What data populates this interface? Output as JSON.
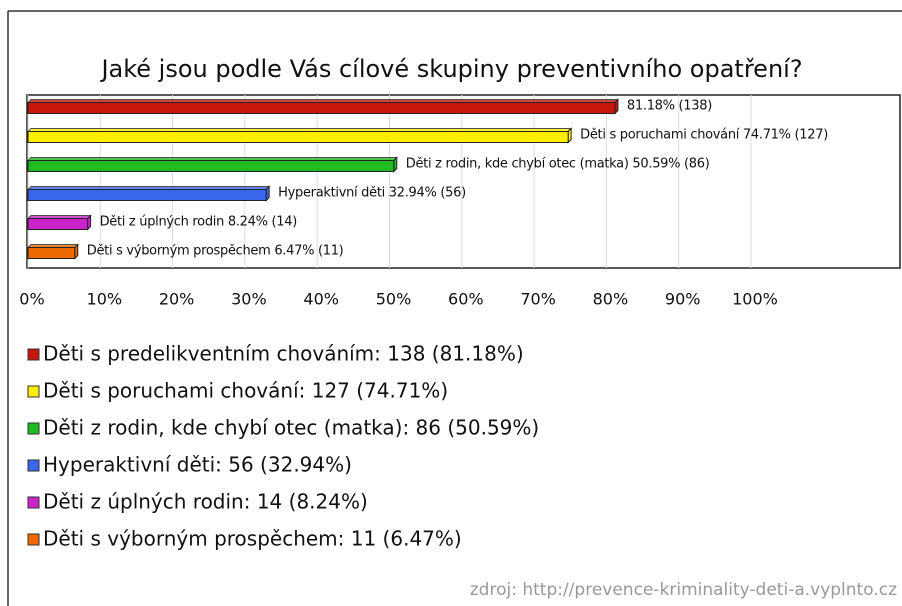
{
  "chart_data": {
    "type": "hbar",
    "title": "Jaké jsou podle Vás cílové skupiny preventivního opatření?",
    "categories": [
      "Děti s predelikventním chováním",
      "Děti s poruchami chování",
      "Děti z rodin, kde chybí otec (matka)",
      "Hyperaktivní děti",
      "Děti z úplných rodin",
      "Děti s výborným prospěchem"
    ],
    "values": [
      81.18,
      74.71,
      50.59,
      32.94,
      8.24,
      6.47
    ],
    "value_labels": [
      "81.18% (138)",
      "Děti s poruchami chování 74.71% (127)",
      "Děti z rodin, kde chybí otec (matka) 50.59% (86)",
      "Hyperaktivní děti 32.94% (56)",
      "Děti z úplných rodin 8.24% (14)",
      "Děti s výborným prospěchem 6.47% (11)"
    ],
    "legend_labels": [
      "Děti s predelikventním chováním: 138 (81.18%)",
      "Děti s poruchami chování: 127 (74.71%)",
      "Děti z rodin, kde chybí otec (matka): 86 (50.59%)",
      "Hyperaktivní děti: 56 (32.94%)",
      "Děti z úplných rodin: 14 (8.24%)",
      "Děti s výborným prospěchem: 11 (6.47%)"
    ],
    "colors": [
      "#c8160c",
      "#ffee00",
      "#1fbb1f",
      "#3a66ee",
      "#cc22cc",
      "#ee6a00"
    ],
    "xlim": [
      0,
      100
    ],
    "xticks": [
      {
        "value": 0,
        "label": "0%"
      },
      {
        "value": 10,
        "label": "10%"
      },
      {
        "value": 20,
        "label": "20%"
      },
      {
        "value": 30,
        "label": "30%"
      },
      {
        "value": 40,
        "label": "40%"
      },
      {
        "value": 50,
        "label": "50%"
      },
      {
        "value": 60,
        "label": "60%"
      },
      {
        "value": 70,
        "label": "70%"
      },
      {
        "value": 80,
        "label": "80%"
      },
      {
        "value": 90,
        "label": "90%"
      },
      {
        "value": 100,
        "label": "100%"
      }
    ],
    "grid": true,
    "source": "zdroj: http://prevence-kriminality-deti-a.vyplnto.cz"
  }
}
